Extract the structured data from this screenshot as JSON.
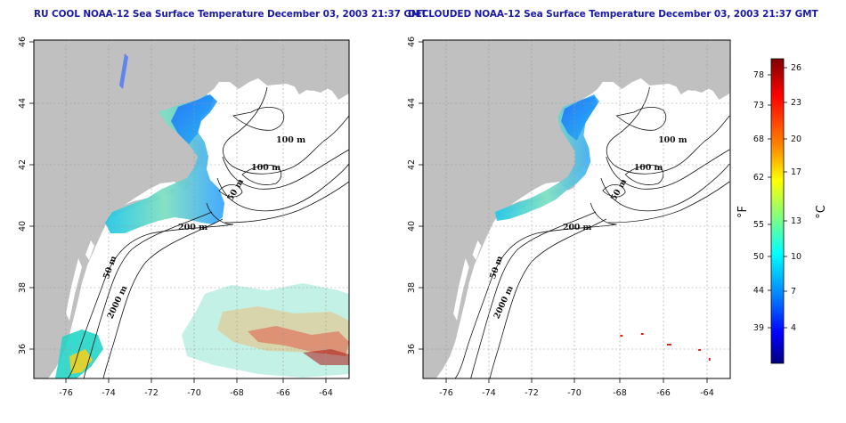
{
  "titles": {
    "left": "RU COOL NOAA-12 Sea Surface Temperature December 03, 2003 21:37 GMT",
    "right": "DECLOUDED NOAA-12 Sea Surface Temperature December 03, 2003 21:37 GMT"
  },
  "axes": {
    "lon_ticks": [
      "-76",
      "-74",
      "-72",
      "-70",
      "-68",
      "-66",
      "-64"
    ],
    "lat_ticks": [
      "46",
      "44",
      "42",
      "40",
      "38",
      "36"
    ]
  },
  "contour_labels": {
    "left": [
      "100 m",
      "100 m",
      "50 m",
      "200 m",
      "50 m",
      "2000 m"
    ],
    "right": [
      "100 m",
      "100 m",
      "50 m",
      "200 m",
      "50 m",
      "2000 m"
    ]
  },
  "colorbar": {
    "unit_f": "°F",
    "unit_c": "°C",
    "f_ticks": [
      "78",
      "73",
      "68",
      "62",
      "55",
      "50",
      "44",
      "39"
    ],
    "c_ticks": [
      "26",
      "23",
      "20",
      "17",
      "13",
      "10",
      "7",
      "4"
    ],
    "colors": [
      "#00007f",
      "#0000ff",
      "#0080ff",
      "#00ffff",
      "#80ff80",
      "#ffff00",
      "#ff8000",
      "#ff0000",
      "#7f0000"
    ]
  },
  "colors": {
    "land": "#c0c0c0",
    "ocean": "#ffffff",
    "title": "#1a1aa6"
  }
}
